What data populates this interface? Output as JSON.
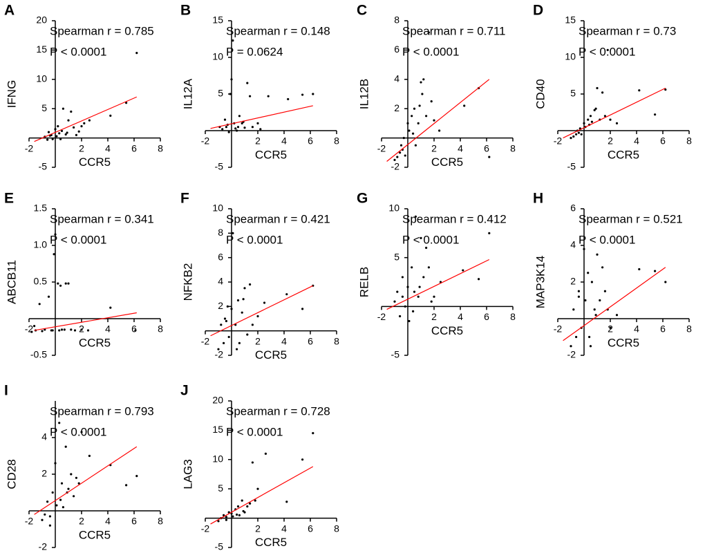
{
  "chart_data": [
    {
      "type": "scatter",
      "label": "A",
      "ylabel": "IFNG",
      "xlabel": "CCR5",
      "annotations": [
        "Spearman r = 0.785",
        "P < 0.0001"
      ],
      "xlim": [
        -2,
        8
      ],
      "xticks": [
        -2,
        2,
        4,
        6,
        8
      ],
      "ylim": [
        -5,
        20
      ],
      "yticks": [
        -5,
        5,
        10,
        15,
        20
      ],
      "x": [
        -0.8,
        -0.6,
        -0.5,
        -0.3,
        -0.2,
        0,
        0.1,
        0.2,
        0.3,
        0.5,
        0.6,
        0.8,
        1,
        1.2,
        1.4,
        1.6,
        2,
        2.2,
        2.6,
        4.2,
        5.4,
        6.2,
        0.4,
        -0.4,
        0.9,
        1.8
      ],
      "series": [
        {
          "color": "#000000",
          "values": [
            0.2,
            -0.3,
            1,
            0.5,
            -0.2,
            1.5,
            0.3,
            2,
            0.8,
            1.2,
            5,
            0.6,
            3,
            4.5,
            1.8,
            0.5,
            2,
            2.5,
            3,
            3.8,
            6,
            14.5,
            -0.2,
            0.4,
            0.9,
            1.1
          ]
        }
      ],
      "fit": {
        "color": "#ff0000",
        "x": [
          -1.6,
          6.2
        ],
        "values": [
          -0.6,
          7
        ]
      }
    },
    {
      "type": "scatter",
      "label": "B",
      "ylabel": "IL12A",
      "xlabel": "CCR5",
      "annotations": [
        "Spearman r = 0.148",
        "P = 0.0624"
      ],
      "xlim": [
        -2,
        8
      ],
      "xticks": [
        -2,
        2,
        4,
        6,
        8
      ],
      "ylim": [
        -5,
        15
      ],
      "yticks": [
        -5,
        5,
        10,
        15
      ],
      "x": [
        -0.9,
        -0.7,
        -0.5,
        -0.3,
        -0.2,
        -0.1,
        0,
        0.1,
        0.2,
        0.3,
        0.5,
        0.6,
        0.8,
        1,
        1.2,
        1.4,
        1.6,
        2,
        2.2,
        2.8,
        4.3,
        5.4,
        6.2,
        0.4,
        -0.4,
        0.9
      ],
      "series": [
        {
          "color": "#000000",
          "values": [
            0.5,
            0.2,
            1.5,
            0.8,
            -0.2,
            5,
            7,
            12.3,
            1,
            0.3,
            0.5,
            2,
            1,
            0.4,
            6.5,
            4.7,
            0.5,
            1,
            0.2,
            4.7,
            4.3,
            4.9,
            5,
            0,
            0.5,
            1.2
          ]
        }
      ],
      "fit": {
        "color": "#ff0000",
        "x": [
          -1.6,
          6.2
        ],
        "values": [
          0.3,
          3.4
        ]
      }
    },
    {
      "type": "scatter",
      "label": "C",
      "ylabel": "IL12B",
      "xlabel": "CCR5",
      "annotations": [
        "Spearman r = 0.711",
        "P < 0.0001"
      ],
      "xlim": [
        -2,
        8
      ],
      "xticks": [
        -2,
        2,
        4,
        6,
        8
      ],
      "ylim": [
        -2,
        8
      ],
      "yticks": [
        -2,
        2,
        4,
        6,
        8
      ],
      "x": [
        -1,
        -0.8,
        -0.6,
        -0.5,
        -0.3,
        -0.2,
        0,
        0.1,
        0.3,
        0.5,
        0.6,
        0.8,
        1,
        1.1,
        1.2,
        1.4,
        1.6,
        1.8,
        2,
        2.4,
        4.3,
        5.4,
        6.2,
        0.4,
        -0.4,
        0.9
      ],
      "series": [
        {
          "color": "#000000",
          "values": [
            -1.5,
            -1.3,
            -1,
            -0.5,
            0,
            -1.2,
            1,
            0.5,
            1.5,
            2,
            -0.5,
            1,
            3.8,
            3,
            4,
            1.5,
            7.2,
            2.5,
            1.2,
            0.5,
            2.2,
            3.4,
            -1.3,
            0.3,
            -0.8,
            2.2
          ]
        }
      ],
      "fit": {
        "color": "#ff0000",
        "x": [
          -1.6,
          6.2
        ],
        "values": [
          -1.6,
          4
        ]
      }
    },
    {
      "type": "scatter",
      "label": "D",
      "ylabel": "CD40",
      "xlabel": "CCR5",
      "annotations": [
        "Spearman r = 0.73",
        "P < 0.0001"
      ],
      "xlim": [
        -2,
        8
      ],
      "xticks": [
        -2,
        2,
        4,
        6,
        8
      ],
      "ylim": [
        -5,
        15
      ],
      "yticks": [
        -5,
        5,
        10,
        15
      ],
      "x": [
        -1,
        -0.8,
        -0.6,
        -0.5,
        -0.3,
        -0.2,
        0,
        0.1,
        0.3,
        0.5,
        0.6,
        0.8,
        1,
        1.2,
        1.4,
        1.6,
        2,
        2.5,
        4.2,
        5.4,
        6.2,
        0.4,
        -0.4,
        0.9,
        1.8
      ],
      "series": [
        {
          "color": "#000000",
          "values": [
            -1,
            -0.8,
            -0.5,
            0,
            0.3,
            -0.5,
            1,
            0.5,
            1.5,
            2,
            1.2,
            2.8,
            5.8,
            1.5,
            5.2,
            2,
            1.5,
            1,
            5.5,
            2.2,
            5.6,
            0.8,
            -0.3,
            3,
            11
          ]
        }
      ],
      "fit": {
        "color": "#ff0000",
        "x": [
          -1.6,
          6.2
        ],
        "values": [
          -1,
          5.8
        ]
      }
    },
    {
      "type": "scatter",
      "label": "E",
      "ylabel": "ABCB11",
      "xlabel": "CCR5",
      "annotations": [
        "Spearman r = 0.341",
        "P < 0.0001"
      ],
      "xlim": [
        -2,
        8
      ],
      "xticks": [
        -2,
        2,
        4,
        6,
        8
      ],
      "ylim": [
        -0.5,
        1.5
      ],
      "yticks": [
        -0.5,
        0.5,
        {
          "value": 1,
          "label": "1.0"
        },
        1.5
      ],
      "x": [
        -1.8,
        -1.5,
        -1.2,
        -1,
        -0.8,
        -0.5,
        -0.3,
        -0.1,
        0,
        0.2,
        0.3,
        0.5,
        0.8,
        1,
        1.2,
        1.5,
        2,
        2.5,
        4.2,
        6.1,
        0.4,
        -0.2,
        -1.6,
        0.7
      ],
      "series": [
        {
          "color": "#000000",
          "values": [
            -0.18,
            -0.16,
            0.2,
            -0.17,
            -0.15,
            0.3,
            -0.16,
            0.88,
            1.15,
            0.48,
            -0.16,
            -0.15,
            0.48,
            0.48,
            -0.15,
            -0.16,
            -0.15,
            -0.16,
            0.15,
            -0.16,
            0.45,
            -0.16,
            -0.1,
            -0.15
          ]
        }
      ],
      "fit": {
        "color": "#ff0000",
        "x": [
          -1.6,
          6.2
        ],
        "values": [
          -0.16,
          0.08
        ]
      }
    },
    {
      "type": "scatter",
      "label": "F",
      "ylabel": "NFKB2",
      "xlabel": "CCR5",
      "annotations": [
        "Spearman r = 0.421",
        "P < 0.0001"
      ],
      "xlim": [
        -2,
        8
      ],
      "xticks": [
        -2,
        2,
        4,
        6,
        8
      ],
      "ylim": [
        -2,
        10
      ],
      "yticks": [
        -2,
        2,
        4,
        6,
        8,
        10
      ],
      "x": [
        -1,
        -0.8,
        -0.6,
        -0.5,
        -0.3,
        -0.2,
        0,
        0.1,
        0.3,
        0.5,
        0.6,
        0.8,
        1,
        1.2,
        1.4,
        1.6,
        2,
        2.5,
        4.2,
        5.4,
        6.2,
        0.4,
        -0.4,
        0.9
      ],
      "series": [
        {
          "color": "#000000",
          "values": [
            -1.5,
            0.5,
            -1,
            1,
            2,
            -0.5,
            1.8,
            8,
            0.5,
            2.5,
            -1,
            1.5,
            3.5,
            -0.3,
            3.8,
            0.5,
            1.2,
            2.3,
            3,
            1.8,
            3.7,
            -1.5,
            0.8,
            2.6
          ]
        }
      ],
      "fit": {
        "color": "#ff0000",
        "x": [
          -1.6,
          6.2
        ],
        "values": [
          -0.4,
          3.7
        ]
      }
    },
    {
      "type": "scatter",
      "label": "G",
      "ylabel": "RELB",
      "xlabel": "CCR5",
      "annotations": [
        "Spearman r = 0.412",
        "P < 0.0001"
      ],
      "xlim": [
        -2,
        8
      ],
      "xticks": [
        -2,
        2,
        4,
        6,
        8
      ],
      "ylim": [
        -5,
        10
      ],
      "yticks": [
        -5,
        5,
        10
      ],
      "x": [
        -1,
        -0.8,
        -0.6,
        -0.4,
        -0.2,
        0,
        0.1,
        0.3,
        0.5,
        0.6,
        0.8,
        1,
        1.2,
        1.4,
        1.6,
        2,
        2.5,
        4.2,
        5.4,
        6.2,
        0.4,
        -0.4,
        0.9,
        1.8
      ],
      "series": [
        {
          "color": "#000000",
          "values": [
            0.5,
            1.5,
            -1,
            3,
            0,
            2,
            -1.5,
            4,
            1.5,
            9.2,
            1,
            7,
            3,
            6,
            4,
            1,
            2.5,
            3.7,
            2.8,
            7.5,
            -0.5,
            1,
            2,
            0.5
          ]
        }
      ],
      "fit": {
        "color": "#ff0000",
        "x": [
          -1.6,
          6.2
        ],
        "values": [
          -0.3,
          4.8
        ]
      }
    },
    {
      "type": "scatter",
      "label": "H",
      "ylabel": "MAP3K14",
      "xlabel": "CCR5",
      "annotations": [
        "Spearman r = 0.521",
        "P < 0.0001"
      ],
      "xlim": [
        -2,
        8
      ],
      "xticks": [
        -2,
        2,
        4,
        6,
        8
      ],
      "ylim": [
        -2,
        6
      ],
      "yticks": [
        -2,
        2,
        4,
        6
      ],
      "x": [
        -1,
        -0.8,
        -0.6,
        -0.4,
        -0.2,
        0,
        0.1,
        0.3,
        0.5,
        0.6,
        0.8,
        1,
        1.2,
        1.4,
        1.6,
        2,
        2.5,
        4.2,
        5.4,
        6.2,
        0.4,
        -0.4,
        0.9,
        1.8
      ],
      "series": [
        {
          "color": "#000000",
          "values": [
            -1.5,
            0.5,
            -1,
            1.2,
            -0.5,
            3.8,
            1,
            2.5,
            -1.5,
            2,
            0.5,
            3.5,
            1,
            2.8,
            1.5,
            -0.5,
            0.2,
            2.7,
            2.6,
            2,
            -1,
            1.5,
            0.2,
            0.5
          ]
        }
      ],
      "fit": {
        "color": "#ff0000",
        "x": [
          -1.6,
          6.2
        ],
        "values": [
          -1.2,
          2.8
        ]
      }
    },
    {
      "type": "scatter",
      "label": "I",
      "ylabel": "CD28",
      "xlabel": "CCR5",
      "annotations": [
        "Spearman r = 0.793",
        "P < 0.0001"
      ],
      "xlim": [
        -2,
        8
      ],
      "xticks": [
        -2,
        2,
        4,
        6,
        8
      ],
      "ylim": [
        -2,
        6
      ],
      "yticks": [
        -2,
        2,
        4
      ],
      "x": [
        -1,
        -0.8,
        -0.6,
        -0.4,
        -0.2,
        0,
        0.1,
        0.3,
        0.5,
        0.6,
        0.8,
        1,
        1.2,
        1.4,
        1.6,
        2,
        2.6,
        4.2,
        5.4,
        6.2,
        0.4,
        -0.4,
        0.9,
        1.8
      ],
      "series": [
        {
          "color": "#000000",
          "values": [
            -0.5,
            -0.2,
            0.5,
            -0.8,
            1,
            2.6,
            0.3,
            4.8,
            1.5,
            0.2,
            3.5,
            1.2,
            2,
            0.8,
            1.8,
            4.3,
            3,
            2.5,
            1.4,
            1.9,
            0.6,
            -0.3,
            1,
            1.5
          ]
        }
      ],
      "fit": {
        "color": "#ff0000",
        "x": [
          -1.6,
          6.2
        ],
        "values": [
          -0.2,
          3.5
        ]
      }
    },
    {
      "type": "scatter",
      "label": "J",
      "ylabel": "LAG3",
      "xlabel": "CCR5",
      "annotations": [
        "Spearman r = 0.728",
        "P < 0.0001"
      ],
      "xlim": [
        -2,
        8
      ],
      "xticks": [
        -2,
        2,
        4,
        6,
        8
      ],
      "ylim": [
        -5,
        20
      ],
      "yticks": [
        -5,
        5,
        10,
        15,
        20
      ],
      "x": [
        -1,
        -0.8,
        -0.6,
        -0.4,
        -0.2,
        0,
        0.1,
        0.3,
        0.5,
        0.6,
        0.8,
        1,
        1.2,
        1.4,
        1.6,
        2,
        2.6,
        4.2,
        5.4,
        6.2,
        0.4,
        -0.4,
        0.9,
        1.8
      ],
      "series": [
        {
          "color": "#000000",
          "values": [
            -0.5,
            0,
            0.5,
            -0.3,
            1,
            0.8,
            0.3,
            1.5,
            2,
            0.5,
            3,
            1,
            2,
            2.5,
            9.5,
            5,
            11,
            2.8,
            10,
            14.5,
            0.6,
            0.2,
            1.2,
            3
          ]
        }
      ],
      "fit": {
        "color": "#ff0000",
        "x": [
          -1.6,
          6.2
        ],
        "values": [
          -1,
          8.8
        ]
      }
    }
  ]
}
